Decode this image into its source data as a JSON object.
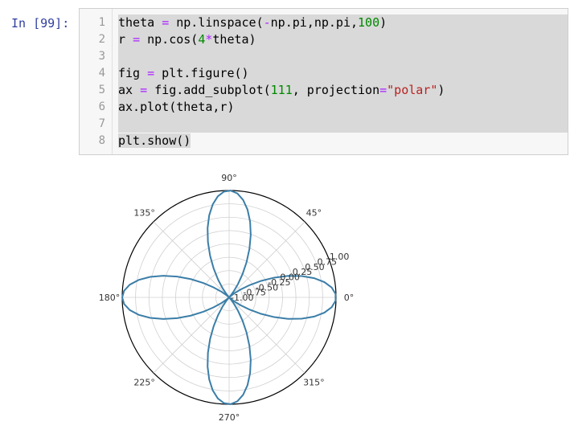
{
  "prompt": "In [99]:",
  "code_lines": [
    {
      "n": "1",
      "parts": [
        [
          "theta ",
          ""
        ],
        [
          "=",
          "op"
        ],
        [
          " np.linspace(",
          ""
        ],
        [
          "-",
          "op"
        ],
        [
          "np.pi,np.pi,",
          ""
        ],
        [
          "100",
          "num"
        ],
        [
          ")",
          ""
        ]
      ]
    },
    {
      "n": "2",
      "parts": [
        [
          "r ",
          ""
        ],
        [
          "=",
          "op"
        ],
        [
          " np.cos(",
          ""
        ],
        [
          "4",
          "num"
        ],
        [
          "*",
          "op"
        ],
        [
          "theta)",
          ""
        ]
      ]
    },
    {
      "n": "3",
      "parts": []
    },
    {
      "n": "4",
      "parts": [
        [
          "fig ",
          ""
        ],
        [
          "=",
          "op"
        ],
        [
          " plt.figure()",
          ""
        ]
      ]
    },
    {
      "n": "5",
      "parts": [
        [
          "ax ",
          ""
        ],
        [
          "=",
          "op"
        ],
        [
          " fig.add_subplot(",
          ""
        ],
        [
          "111",
          "num"
        ],
        [
          ", projection",
          ""
        ],
        [
          "=",
          "op"
        ],
        [
          "\"polar\"",
          "str"
        ],
        [
          ")",
          ""
        ]
      ]
    },
    {
      "n": "6",
      "parts": [
        [
          "ax.plot(theta,r)",
          ""
        ]
      ]
    },
    {
      "n": "7",
      "parts": []
    },
    {
      "n": "8",
      "parts": [
        [
          "plt.show()",
          ""
        ]
      ]
    }
  ],
  "chart_data": {
    "type": "line",
    "projection": "polar",
    "series": [
      {
        "color": "#3b7ea8",
        "formula": "r = cos(4*theta)",
        "theta_range": [
          -3.14159,
          3.14159
        ],
        "n_points": 100
      }
    ],
    "angle_ticks": [
      "0°",
      "45°",
      "90°",
      "135°",
      "180°",
      "225°",
      "270°",
      "315°"
    ],
    "radial_ticks": [
      "-1.00",
      "-0.75",
      "-0.50",
      "-0.25",
      "0.00",
      "0.25",
      "0.50",
      "0.75",
      "1.00"
    ],
    "rlim": [
      -1.0,
      1.0
    ],
    "grid": true
  }
}
